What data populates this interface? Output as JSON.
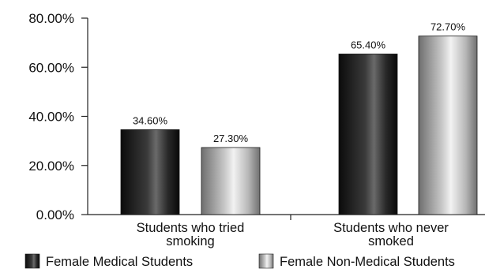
{
  "chart_data": {
    "type": "bar",
    "title": "",
    "xlabel": "",
    "ylabel": "",
    "categories": [
      [
        "Students who tried",
        "smoking"
      ],
      [
        "Students who never",
        "smoked"
      ]
    ],
    "series": [
      {
        "name": "Female Medical Students",
        "values": [
          34.6,
          65.4
        ],
        "value_labels": [
          "34.60%",
          "65.40%"
        ],
        "style": "dark-gradient"
      },
      {
        "name": "Female Non-Medical Students",
        "values": [
          27.3,
          72.7
        ],
        "value_labels": [
          "27.30%",
          "72.70%"
        ],
        "style": "light-gradient"
      }
    ],
    "ylim": [
      0,
      80
    ],
    "yticks": [
      0,
      20,
      40,
      60,
      80
    ],
    "ytick_labels": [
      "0.00%",
      "20.00%",
      "40.00%",
      "60.00%",
      "80.00%"
    ],
    "grid": false,
    "legend_position": "bottom"
  }
}
